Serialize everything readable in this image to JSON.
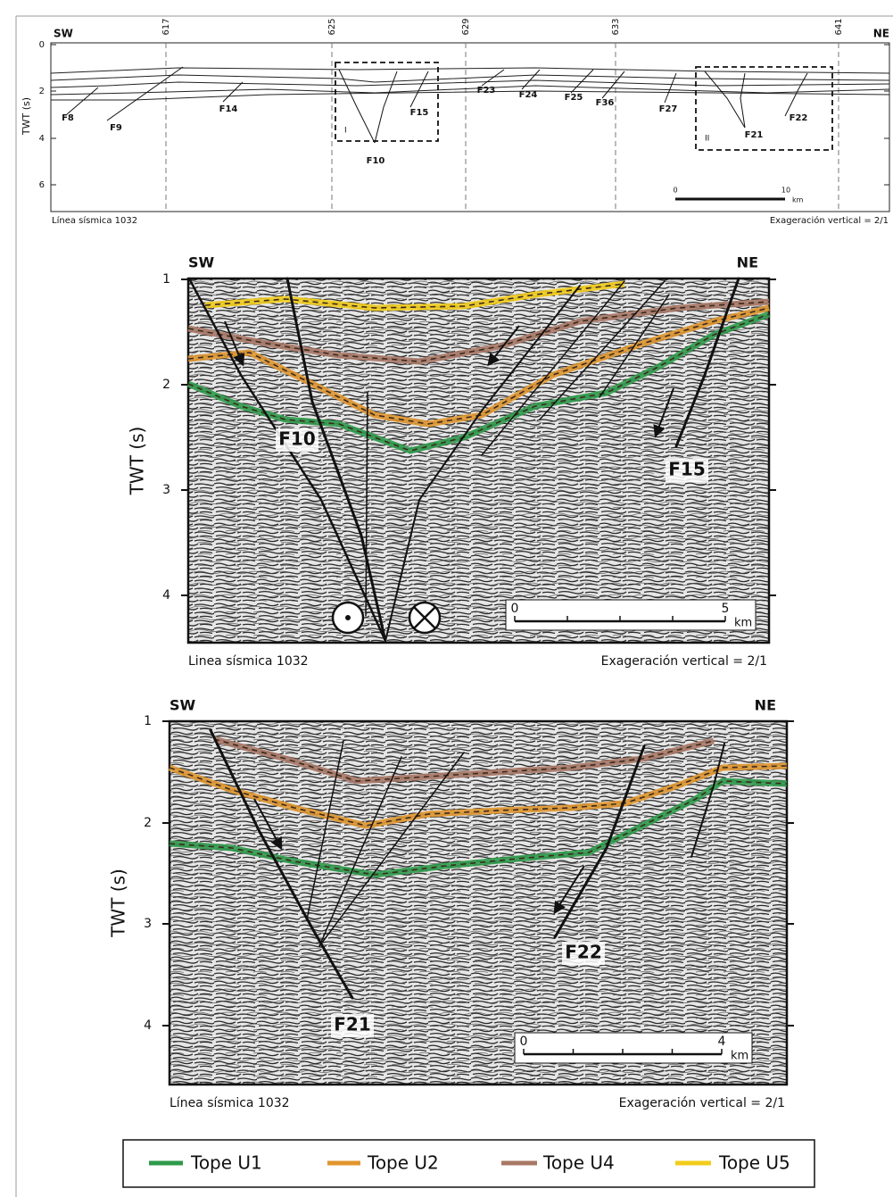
{
  "panel_a": {
    "direction_left": "SW",
    "direction_right": "NE",
    "shotpoints": [
      "617",
      "625",
      "629",
      "633",
      "641"
    ],
    "y_axis_label": "TWT (s)",
    "y_ticks": [
      "0",
      "2",
      "4",
      "6"
    ],
    "faults": [
      "F8",
      "F9",
      "F14",
      "F10",
      "F15",
      "F23",
      "F24",
      "F25",
      "F36",
      "F27",
      "F21",
      "F22"
    ],
    "boxes": [
      "I",
      "II"
    ],
    "scale": [
      "0",
      "10",
      "km"
    ],
    "line_label": "Línea sísmica 1032",
    "exaggeration": "Exageración vertical = 2/1"
  },
  "panel_b": {
    "direction_left": "SW",
    "direction_right": "NE",
    "y_axis_label": "TWT (s)",
    "y_ticks": [
      "1",
      "2",
      "3",
      "4"
    ],
    "faults": [
      "F10",
      "F15"
    ],
    "scale": [
      "0",
      "5",
      "km"
    ],
    "line_label": "Linea sísmica 1032",
    "exaggeration": "Exageración vertical = 2/1"
  },
  "panel_c": {
    "direction_left": "SW",
    "direction_right": "NE",
    "y_axis_label": "TWT (s)",
    "y_ticks": [
      "1",
      "2",
      "3",
      "4"
    ],
    "faults": [
      "F22",
      "F21"
    ],
    "scale": [
      "0",
      "4",
      "km"
    ],
    "line_label": "Línea sísmica 1032",
    "exaggeration": "Exageración vertical = 2/1"
  },
  "legend": [
    {
      "name": "Tope U1",
      "color": "#2e9a4a"
    },
    {
      "name": "Tope U2",
      "color": "#e0962e"
    },
    {
      "name": "Tope U4",
      "color": "#a87866"
    },
    {
      "name": "Tope U5",
      "color": "#f2cc1a"
    }
  ]
}
